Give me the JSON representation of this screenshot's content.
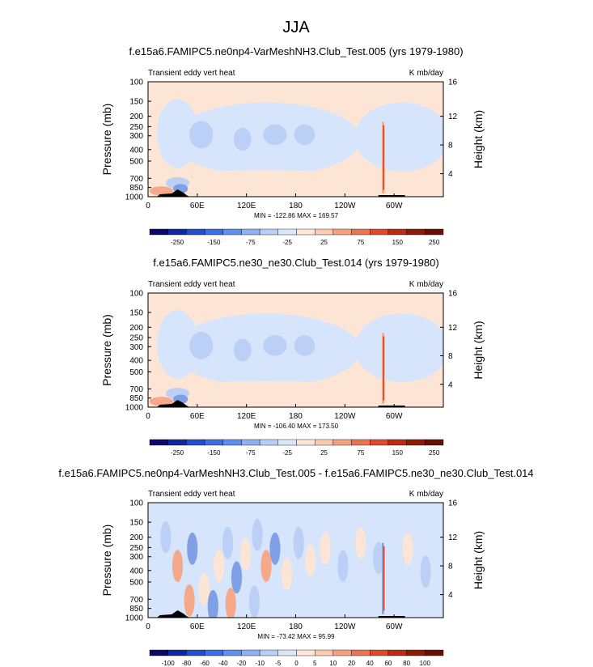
{
  "figure_title": "JJA",
  "chart_data": [
    {
      "type": "heatmap",
      "title": "f.e15a6.FAMIPC5.ne0np4-VarMeshNH3.Club_Test.005 (yrs 1979-1980)",
      "left_label": "Transient eddy vert heat",
      "right_label": "K mb/day",
      "ylabel": "Pressure (mb)",
      "y2label": "Height (km)",
      "xticks": [
        "0",
        "60E",
        "120E",
        "180",
        "120W",
        "60W"
      ],
      "yticks": [
        "100",
        "150",
        "200",
        "250",
        "300",
        "400",
        "500",
        "700",
        "850",
        "1000"
      ],
      "y2ticks": [
        "16",
        "12",
        "8",
        "4"
      ],
      "stats": "MIN = -122.86   MAX = 169.57",
      "min": -122.86,
      "max": 169.57,
      "colorbar_labels": [
        "-250",
        "-150",
        "-75",
        "-25",
        "25",
        "75",
        "150",
        "250"
      ]
    },
    {
      "type": "heatmap",
      "title": "f.e15a6.FAMIPC5.ne30_ne30.Club_Test.014 (yrs 1979-1980)",
      "left_label": "Transient eddy vert heat",
      "right_label": "K mb/day",
      "ylabel": "Pressure (mb)",
      "y2label": "Height (km)",
      "xticks": [
        "0",
        "60E",
        "120E",
        "180",
        "120W",
        "60W"
      ],
      "yticks": [
        "100",
        "150",
        "200",
        "250",
        "300",
        "400",
        "500",
        "700",
        "850",
        "1000"
      ],
      "y2ticks": [
        "16",
        "12",
        "8",
        "4"
      ],
      "stats": "MIN = -106.40   MAX = 173.50",
      "min": -106.4,
      "max": 173.5,
      "colorbar_labels": [
        "-250",
        "-150",
        "-75",
        "-25",
        "25",
        "75",
        "150",
        "250"
      ]
    },
    {
      "type": "heatmap",
      "title": "f.e15a6.FAMIPC5.ne0np4-VarMeshNH3.Club_Test.005 - f.e15a6.FAMIPC5.ne30_ne30.Club_Test.014",
      "left_label": "Transient eddy vert heat",
      "right_label": "K mb/day",
      "ylabel": "Pressure (mb)",
      "y2label": "Height (km)",
      "xticks": [
        "0",
        "60E",
        "120E",
        "180",
        "120W",
        "60W"
      ],
      "yticks": [
        "100",
        "150",
        "200",
        "250",
        "300",
        "400",
        "500",
        "700",
        "850",
        "1000"
      ],
      "y2ticks": [
        "16",
        "12",
        "8",
        "4"
      ],
      "stats": "MIN = -73.42   MAX =  95.99",
      "min": -73.42,
      "max": 95.99,
      "colorbar_labels": [
        "-100",
        "-80",
        "-60",
        "-40",
        "-20",
        "-10",
        "-5",
        "0",
        "5",
        "10",
        "20",
        "40",
        "60",
        "80",
        "100"
      ]
    }
  ],
  "colors": {
    "colorbar": [
      "#0a0a6e",
      "#0f2aa0",
      "#1f4fd0",
      "#3a6fe3",
      "#5e8eef",
      "#8fb0f5",
      "#b9cdf9",
      "#d9e6fc",
      "#fde6d6",
      "#fbcbb0",
      "#f6a07c",
      "#ee7350",
      "#de4a2a",
      "#bf2a12",
      "#8f1a08",
      "#6a0f04"
    ],
    "ocean_light_blue": "#d6e5fb",
    "mid_blue": "#bccff7",
    "deep_blue": "#7f9fe6",
    "peach": "#fce5d4",
    "orange": "#f6a88a",
    "red": "#d23a20",
    "terrain": "#000000"
  }
}
